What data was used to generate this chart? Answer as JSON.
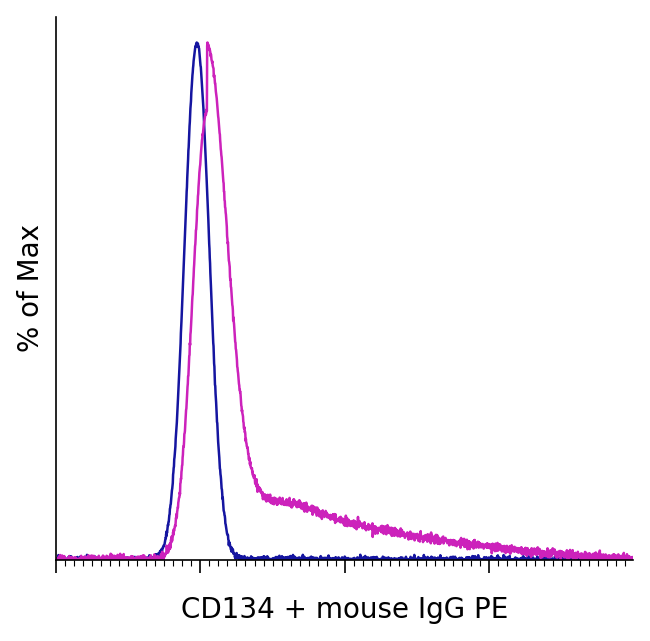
{
  "title": "",
  "xlabel": "CD134 + mouse IgG PE",
  "ylabel": "% of Max",
  "xlabel_fontsize": 20,
  "ylabel_fontsize": 20,
  "background_color": "#ffffff",
  "plot_bg_color": "#ffffff",
  "line1_color": "#1515a0",
  "line2_color": "#cc22bb",
  "line_width": 1.8,
  "xlim": [
    0,
    1023
  ],
  "ylim": [
    0,
    1.05
  ],
  "figsize": [
    6.5,
    6.41
  ],
  "dpi": 100,
  "spine_linewidth": 1.2
}
